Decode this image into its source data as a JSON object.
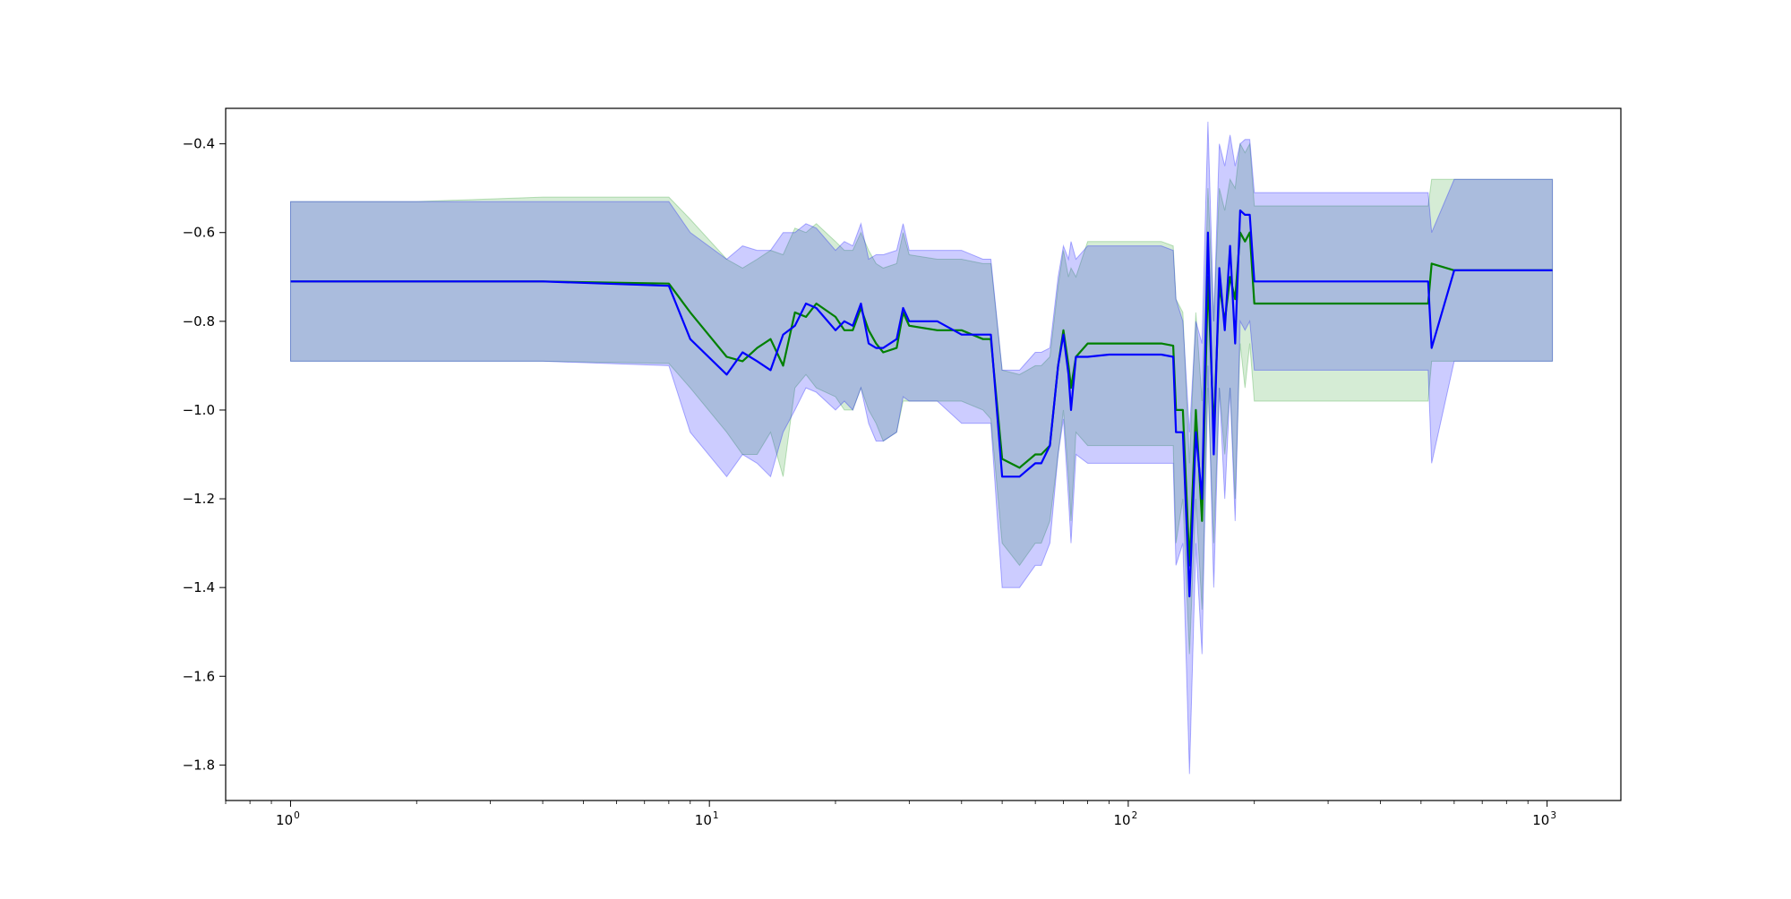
{
  "chart_data": {
    "type": "line",
    "title": "",
    "xlabel": "",
    "ylabel": "",
    "xscale": "log",
    "xlim": [
      0.7,
      1500
    ],
    "ylim": [
      -1.88,
      -0.32
    ],
    "grid": false,
    "x_ticks": [
      {
        "value": 1,
        "base": "10",
        "exp": "0"
      },
      {
        "value": 10,
        "base": "10",
        "exp": "1"
      },
      {
        "value": 100,
        "base": "10",
        "exp": "2"
      },
      {
        "value": 1000,
        "base": "10",
        "exp": "3"
      }
    ],
    "y_ticks": [
      {
        "value": -0.4,
        "label": "−0.4"
      },
      {
        "value": -0.6,
        "label": "−0.6"
      },
      {
        "value": -0.8,
        "label": "−0.8"
      },
      {
        "value": -1.0,
        "label": "−1.0"
      },
      {
        "value": -1.2,
        "label": "−1.2"
      },
      {
        "value": -1.4,
        "label": "−1.4"
      },
      {
        "value": -1.6,
        "label": "−1.6"
      },
      {
        "value": -1.8,
        "label": "−1.8"
      }
    ],
    "series": [
      {
        "color": "#008000",
        "band_color": "#2ca02c",
        "x": [
          1,
          2,
          4,
          8,
          9,
          11,
          12,
          13,
          14,
          15,
          16,
          17,
          18,
          20,
          21,
          22,
          23,
          24,
          25,
          26,
          28,
          29,
          30,
          35,
          40,
          45,
          47,
          50,
          55,
          60,
          62,
          65,
          68,
          70,
          72,
          73,
          75,
          80,
          90,
          100,
          110,
          120,
          128,
          130,
          135,
          140,
          145,
          150,
          155,
          160,
          165,
          170,
          175,
          180,
          185,
          190,
          195,
          200,
          250,
          300,
          400,
          520,
          530,
          600,
          800,
          1000,
          1030
        ],
        "y": [
          -0.71,
          -0.71,
          -0.71,
          -0.715,
          -0.78,
          -0.88,
          -0.89,
          -0.86,
          -0.84,
          -0.9,
          -0.78,
          -0.79,
          -0.76,
          -0.79,
          -0.82,
          -0.82,
          -0.77,
          -0.82,
          -0.85,
          -0.87,
          -0.86,
          -0.78,
          -0.81,
          -0.82,
          -0.82,
          -0.84,
          -0.84,
          -1.11,
          -1.13,
          -1.1,
          -1.1,
          -1.08,
          -0.9,
          -0.82,
          -0.9,
          -0.95,
          -0.88,
          -0.85,
          -0.85,
          -0.85,
          -0.85,
          -0.85,
          -0.855,
          -1.0,
          -1.0,
          -1.35,
          -1.0,
          -1.25,
          -0.7,
          -1.05,
          -0.72,
          -0.8,
          -0.7,
          -0.75,
          -0.6,
          -0.62,
          -0.6,
          -0.76,
          -0.76,
          -0.76,
          -0.76,
          -0.76,
          -0.67,
          -0.685,
          -0.685,
          -0.685,
          -0.685
        ],
        "lower": [
          -0.89,
          -0.89,
          -0.89,
          -0.895,
          -0.95,
          -1.05,
          -1.1,
          -1.1,
          -1.05,
          -1.15,
          -0.95,
          -0.92,
          -0.95,
          -0.97,
          -1.0,
          -1.0,
          -0.95,
          -1.0,
          -1.03,
          -1.07,
          -1.05,
          -0.98,
          -0.98,
          -0.98,
          -0.98,
          -1.0,
          -1.02,
          -1.3,
          -1.35,
          -1.3,
          -1.3,
          -1.25,
          -1.1,
          -1.0,
          -1.15,
          -1.25,
          -1.05,
          -1.08,
          -1.08,
          -1.08,
          -1.08,
          -1.08,
          -1.08,
          -1.3,
          -1.2,
          -1.55,
          -1.2,
          -1.45,
          -0.95,
          -1.3,
          -0.95,
          -1.1,
          -0.95,
          -1.2,
          -0.85,
          -0.95,
          -0.85,
          -0.98,
          -0.98,
          -0.98,
          -0.98,
          -0.98,
          -0.89,
          -0.89,
          -0.89,
          -0.89,
          -0.89
        ],
        "upper": [
          -0.53,
          -0.53,
          -0.52,
          -0.52,
          -0.57,
          -0.66,
          -0.68,
          -0.66,
          -0.64,
          -0.65,
          -0.59,
          -0.6,
          -0.58,
          -0.62,
          -0.64,
          -0.64,
          -0.6,
          -0.64,
          -0.67,
          -0.68,
          -0.67,
          -0.6,
          -0.65,
          -0.66,
          -0.66,
          -0.67,
          -0.67,
          -0.91,
          -0.92,
          -0.9,
          -0.9,
          -0.88,
          -0.72,
          -0.64,
          -0.7,
          -0.68,
          -0.7,
          -0.62,
          -0.62,
          -0.62,
          -0.62,
          -0.62,
          -0.63,
          -0.75,
          -0.78,
          -1.12,
          -0.78,
          -0.98,
          -0.5,
          -0.8,
          -0.5,
          -0.55,
          -0.48,
          -0.5,
          -0.4,
          -0.42,
          -0.4,
          -0.54,
          -0.54,
          -0.54,
          -0.54,
          -0.54,
          -0.48,
          -0.48,
          -0.48,
          -0.48,
          -0.48
        ]
      },
      {
        "color": "#0000ff",
        "band_color": "#0000ff",
        "x": [
          1,
          2,
          4,
          8,
          9,
          11,
          12,
          13,
          14,
          15,
          16,
          17,
          18,
          20,
          21,
          22,
          23,
          24,
          25,
          26,
          28,
          29,
          30,
          35,
          40,
          45,
          47,
          50,
          55,
          60,
          62,
          65,
          68,
          70,
          72,
          73,
          75,
          80,
          90,
          100,
          110,
          120,
          128,
          130,
          135,
          140,
          145,
          150,
          155,
          160,
          165,
          170,
          175,
          180,
          185,
          190,
          195,
          200,
          250,
          300,
          400,
          520,
          530,
          600,
          800,
          1000,
          1030
        ],
        "y": [
          -0.71,
          -0.71,
          -0.71,
          -0.72,
          -0.84,
          -0.92,
          -0.87,
          -0.89,
          -0.91,
          -0.83,
          -0.81,
          -0.76,
          -0.77,
          -0.82,
          -0.8,
          -0.81,
          -0.76,
          -0.85,
          -0.86,
          -0.86,
          -0.84,
          -0.77,
          -0.8,
          -0.8,
          -0.83,
          -0.83,
          -0.83,
          -1.15,
          -1.15,
          -1.12,
          -1.12,
          -1.08,
          -0.9,
          -0.83,
          -0.92,
          -1.0,
          -0.88,
          -0.88,
          -0.875,
          -0.875,
          -0.875,
          -0.875,
          -0.88,
          -1.05,
          -1.05,
          -1.42,
          -1.05,
          -1.2,
          -0.6,
          -1.1,
          -0.68,
          -0.82,
          -0.63,
          -0.85,
          -0.55,
          -0.56,
          -0.56,
          -0.71,
          -0.71,
          -0.71,
          -0.71,
          -0.71,
          -0.86,
          -0.685,
          -0.685,
          -0.685,
          -0.685
        ],
        "lower": [
          -0.89,
          -0.89,
          -0.89,
          -0.9,
          -1.05,
          -1.15,
          -1.1,
          -1.12,
          -1.15,
          -1.05,
          -1.0,
          -0.95,
          -0.96,
          -1.0,
          -0.98,
          -1.0,
          -0.95,
          -1.03,
          -1.07,
          -1.07,
          -1.05,
          -0.97,
          -0.98,
          -0.98,
          -1.03,
          -1.03,
          -1.03,
          -1.4,
          -1.4,
          -1.35,
          -1.35,
          -1.3,
          -1.1,
          -1.02,
          -1.2,
          -1.3,
          -1.1,
          -1.12,
          -1.12,
          -1.12,
          -1.12,
          -1.12,
          -1.12,
          -1.35,
          -1.3,
          -1.82,
          -1.3,
          -1.55,
          -0.9,
          -1.4,
          -0.95,
          -1.2,
          -0.95,
          -1.25,
          -0.8,
          -0.82,
          -0.8,
          -0.91,
          -0.91,
          -0.91,
          -0.91,
          -0.91,
          -1.12,
          -0.89,
          -0.89,
          -0.89,
          -0.89
        ],
        "upper": [
          -0.53,
          -0.53,
          -0.53,
          -0.53,
          -0.6,
          -0.66,
          -0.63,
          -0.64,
          -0.64,
          -0.6,
          -0.6,
          -0.58,
          -0.59,
          -0.64,
          -0.62,
          -0.63,
          -0.58,
          -0.66,
          -0.65,
          -0.65,
          -0.64,
          -0.58,
          -0.64,
          -0.64,
          -0.64,
          -0.66,
          -0.66,
          -0.91,
          -0.91,
          -0.87,
          -0.87,
          -0.86,
          -0.7,
          -0.63,
          -0.66,
          -0.62,
          -0.66,
          -0.63,
          -0.63,
          -0.63,
          -0.63,
          -0.63,
          -0.64,
          -0.75,
          -0.8,
          -1.05,
          -0.8,
          -0.85,
          -0.35,
          -0.8,
          -0.4,
          -0.45,
          -0.38,
          -0.45,
          -0.4,
          -0.39,
          -0.39,
          -0.51,
          -0.51,
          -0.51,
          -0.51,
          -0.51,
          -0.6,
          -0.48,
          -0.48,
          -0.48,
          -0.48
        ]
      }
    ]
  }
}
